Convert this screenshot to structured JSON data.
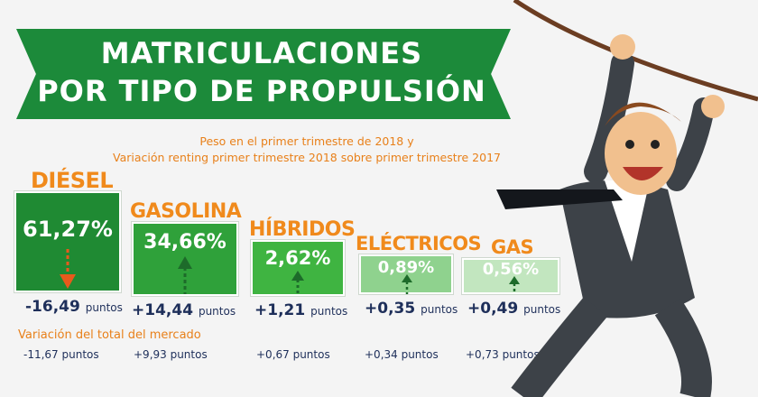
{
  "title": {
    "line1": "MATRICULACIONES",
    "line2": "POR TIPO DE PROPULSIÓN"
  },
  "subtitle": {
    "line1": "Peso en el primer trimestre de 2018 y",
    "line2": "Variación renting primer trimestre 2018 sobre primer trimestre 2017"
  },
  "categories": [
    {
      "label": "DIÉSEL",
      "share": "61,27%",
      "share_value": 61.27,
      "renting_points": "-16,49",
      "market_points": "-11,67 puntos",
      "color": "#1f8a33"
    },
    {
      "label": "GASOLINA",
      "share": "34,66%",
      "share_value": 34.66,
      "renting_points": "+14,44",
      "market_points": "+9,93 puntos",
      "color": "#2fa13a"
    },
    {
      "label": "HÍBRIDOS",
      "share": "2,62%",
      "share_value": 2.62,
      "renting_points": "+1,21",
      "market_points": "+0,67 puntos",
      "color": "#3fb441"
    },
    {
      "label": "ELÉCTRICOS",
      "share": "0,89%",
      "share_value": 0.89,
      "renting_points": "+0,35",
      "market_points": "+0,34 puntos",
      "color": "#8fd28e"
    },
    {
      "label": "GAS",
      "share": "0,56%",
      "share_value": 0.56,
      "renting_points": "+0,49",
      "market_points": "+0,73 puntos",
      "color": "#c2e6bf"
    }
  ],
  "points_unit": "puntos",
  "market_label": "Variación del total del mercado",
  "colors": {
    "banner_green": "#1c8a3a",
    "orange": "#f08a1c",
    "navy": "#1e2f5a",
    "arrow_down": "#e85a1c",
    "arrow_up": "#1d6b2a"
  }
}
